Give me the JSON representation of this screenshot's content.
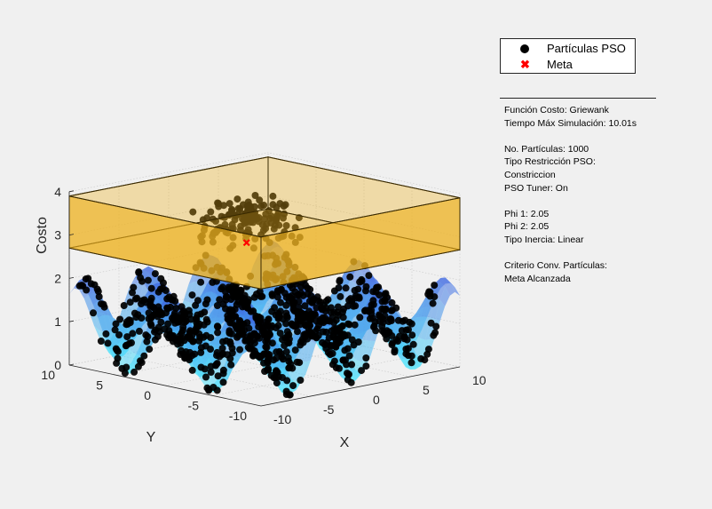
{
  "chart_data": {
    "type": "surface",
    "zlabel": "Costo",
    "xlabel": "X",
    "ylabel": "Y",
    "xlim": [
      -10,
      10
    ],
    "ylim": [
      -10,
      10
    ],
    "zlim": [
      0,
      4
    ],
    "x_ticks": [
      "-10",
      "-5",
      "0",
      "5",
      "10"
    ],
    "y_ticks": [
      "-10",
      "-5",
      "0",
      "5",
      "10"
    ],
    "z_ticks": [
      "0",
      "1",
      "2",
      "3",
      "4"
    ],
    "grid": true,
    "surface_function": "griewank",
    "restriction_box": {
      "z_min": 2.7,
      "z_max": 3.9,
      "xlim": [
        -10,
        10
      ],
      "ylim": [
        -10,
        10
      ]
    },
    "goal_point": {
      "x": 0.6,
      "y": 2.5,
      "z": 2.7
    },
    "legend_position": "top-right",
    "colors": {
      "particles": "#000000",
      "goal": "#ff0000",
      "box": "#edb120",
      "surface_high": "#3f5fe0",
      "surface_low": "#4ef0ff"
    }
  },
  "legend": {
    "items": [
      {
        "label": "Partículas PSO",
        "marker": "dot"
      },
      {
        "label": "Meta",
        "marker": "x-icon"
      }
    ]
  },
  "info": {
    "lines": [
      "Función Costo: Griewank",
      "Tiempo Máx Simulación: 10.01s",
      "",
      "No. Partículas: 1000",
      "Tipo Restricción PSO:",
      "Constriccion",
      "PSO Tuner: On",
      "",
      "Phi 1: 2.05",
      "Phi 2: 2.05",
      "Tipo Inercia: Linear",
      "",
      "Criterio Conv. Partículas:",
      "Meta Alcanzada"
    ]
  }
}
